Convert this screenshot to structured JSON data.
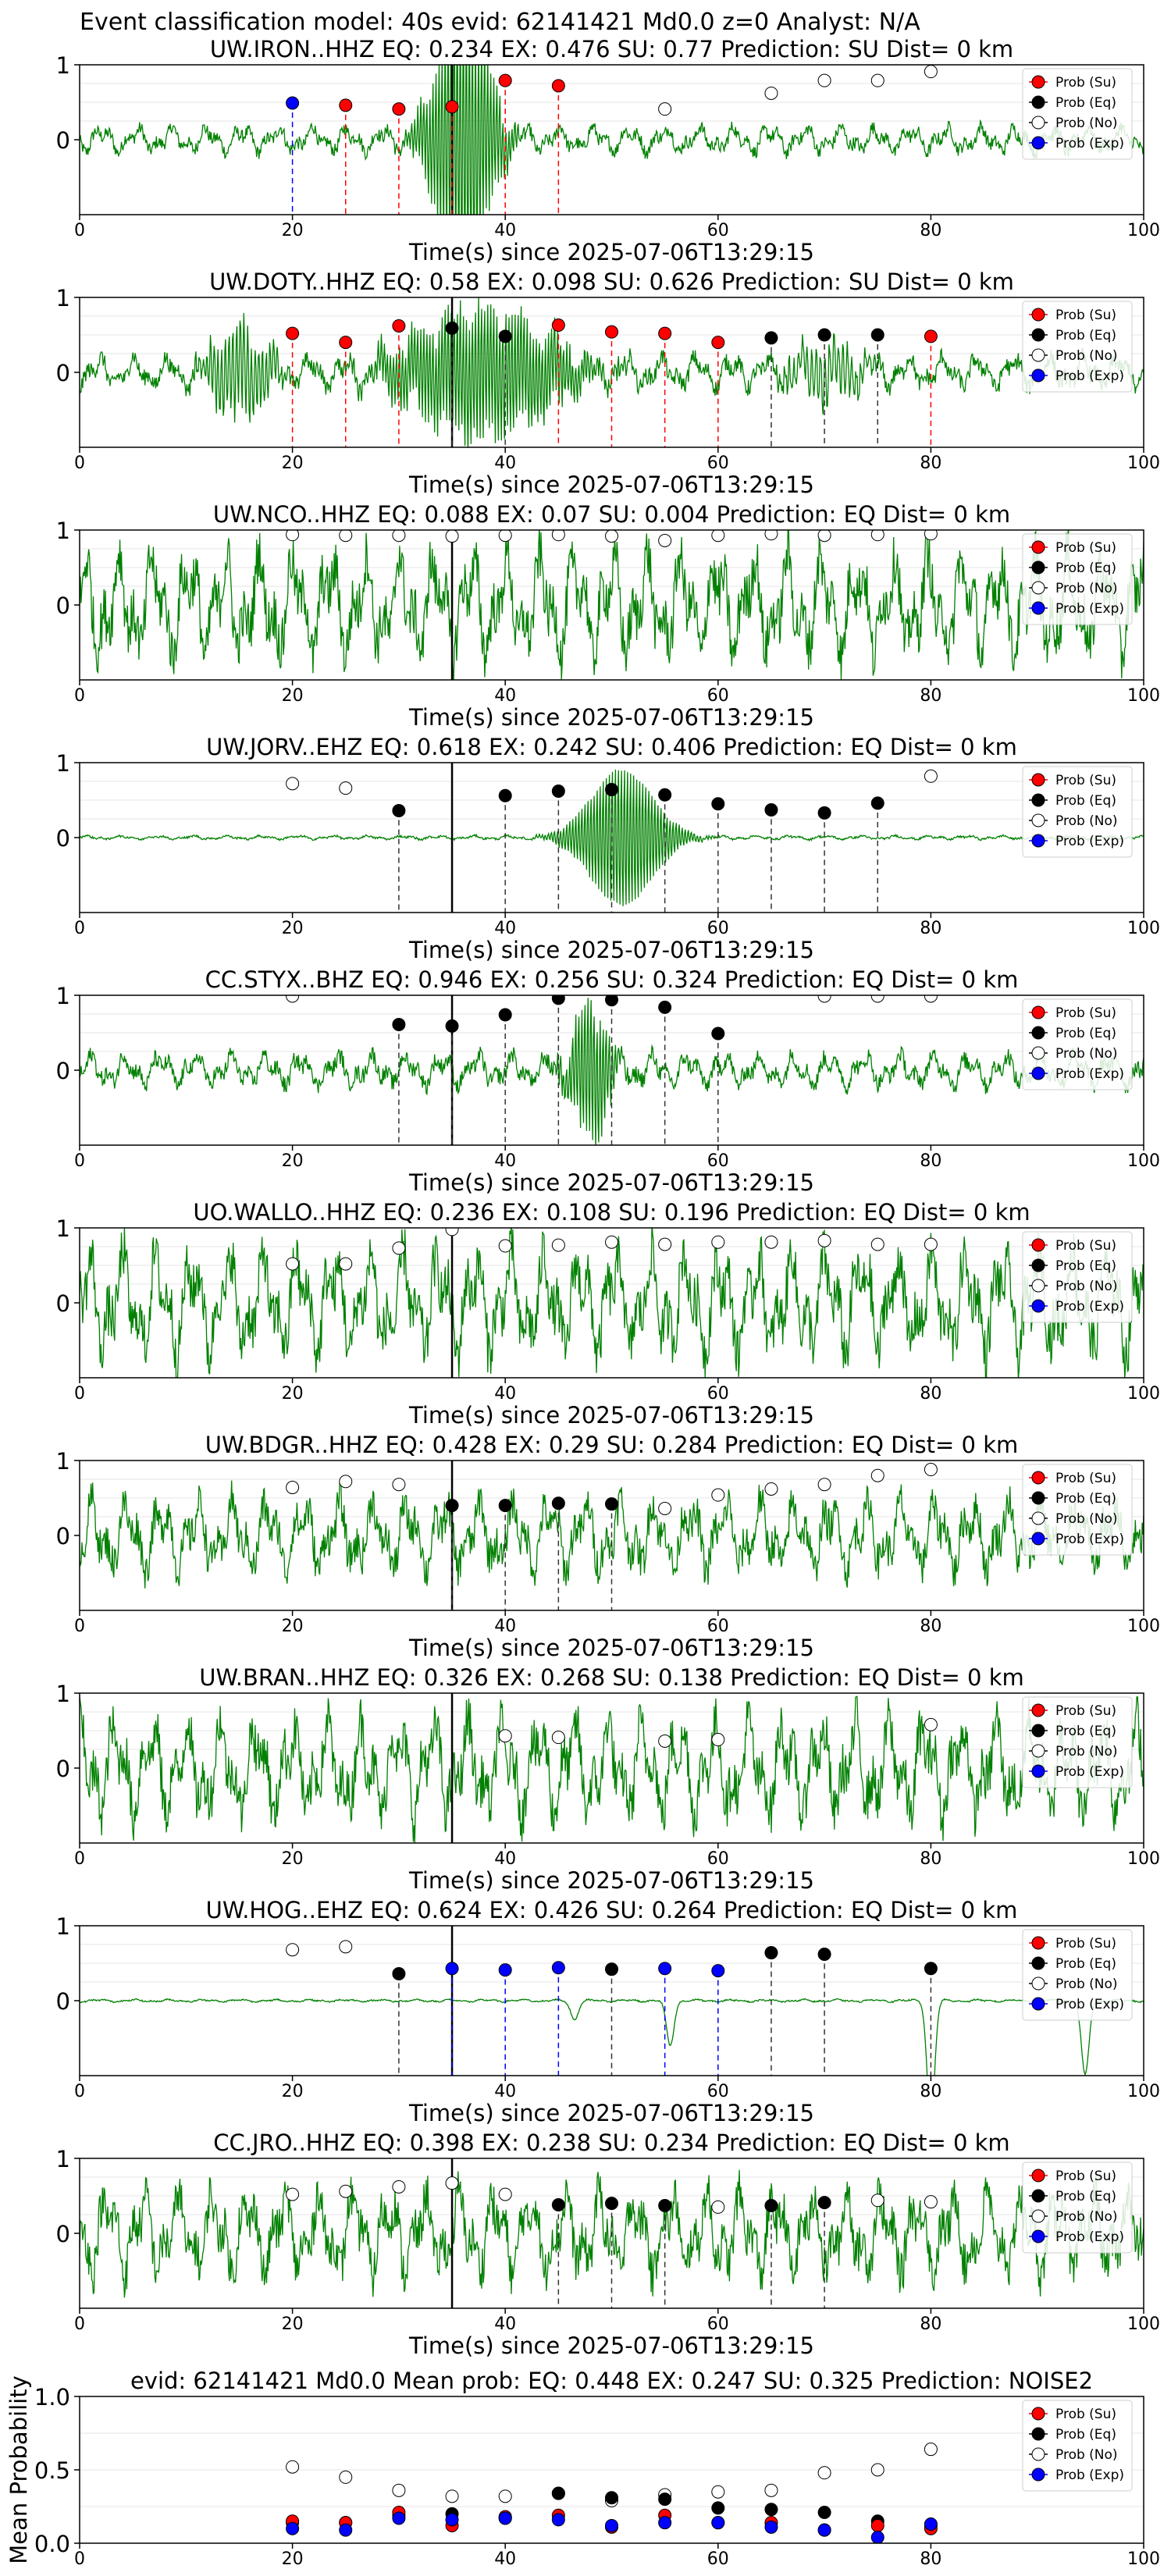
{
  "figure_title": "Event classification model: 40s evid: 62141421 Md0.0 z=0 Analyst: N/A",
  "colors": {
    "su": "#ff0000",
    "eq": "#000000",
    "no": "#ffffff",
    "exp": "#0000ff",
    "trace": "#008000",
    "pick_line": "#000000"
  },
  "legend": [
    "Prob (Su)",
    "Prob (Eq)",
    "Prob (No)",
    "Prob (Exp)"
  ],
  "chart_data": [
    {
      "type": "line",
      "title": "UW.IRON..HHZ   EQ: 0.234   EX: 0.476   SU: 0.77    Prediction: SU    Dist= 0 km",
      "xlabel": "Time(s) since 2025-07-06T13:29:15",
      "ylabel": "",
      "xlim": [
        0,
        100
      ],
      "ylim": [
        -1,
        1
      ],
      "x_ticks": [
        "0",
        "20",
        "40",
        "60",
        "80",
        "100"
      ],
      "y_ticks": [
        "1",
        "0"
      ],
      "pick_time": 35,
      "trace_style": "burst",
      "burst_center": 36,
      "burst_width": 3,
      "burst_amp": 2.0,
      "noise_amp": 0.2,
      "markers": [
        {
          "x": 20,
          "y": 0.49,
          "cls": "exp"
        },
        {
          "x": 25,
          "y": 0.46,
          "cls": "su"
        },
        {
          "x": 30,
          "y": 0.41,
          "cls": "su"
        },
        {
          "x": 35,
          "y": 0.44,
          "cls": "su"
        },
        {
          "x": 40,
          "y": 0.79,
          "cls": "su"
        },
        {
          "x": 45,
          "y": 0.72,
          "cls": "su"
        },
        {
          "x": 55,
          "y": 0.41,
          "cls": "no"
        },
        {
          "x": 65,
          "y": 0.62,
          "cls": "no"
        },
        {
          "x": 70,
          "y": 0.79,
          "cls": "no"
        },
        {
          "x": 75,
          "y": 0.79,
          "cls": "no"
        },
        {
          "x": 80,
          "y": 0.91,
          "cls": "no"
        }
      ]
    },
    {
      "type": "line",
      "title": "UW.DOTY..HHZ   EQ: 0.58   EX: 0.098   SU: 0.626    Prediction: SU    Dist= 0 km",
      "xlabel": "Time(s) since 2025-07-06T13:29:15",
      "ylabel": "",
      "xlim": [
        0,
        100
      ],
      "ylim": [
        -1,
        1
      ],
      "x_ticks": [
        "0",
        "20",
        "40",
        "60",
        "80",
        "100"
      ],
      "y_ticks": [
        "1",
        "0"
      ],
      "pick_time": 35,
      "trace_style": "multiburst",
      "burst_center": 38,
      "burst_width": 8,
      "burst_amp": 0.9,
      "noise_amp": 0.25,
      "markers": [
        {
          "x": 20,
          "y": 0.52,
          "cls": "su"
        },
        {
          "x": 25,
          "y": 0.4,
          "cls": "su"
        },
        {
          "x": 30,
          "y": 0.62,
          "cls": "su"
        },
        {
          "x": 35,
          "y": 0.59,
          "cls": "eq"
        },
        {
          "x": 40,
          "y": 0.48,
          "cls": "eq"
        },
        {
          "x": 45,
          "y": 0.63,
          "cls": "su"
        },
        {
          "x": 50,
          "y": 0.54,
          "cls": "su"
        },
        {
          "x": 55,
          "y": 0.52,
          "cls": "su"
        },
        {
          "x": 60,
          "y": 0.4,
          "cls": "su"
        },
        {
          "x": 65,
          "y": 0.46,
          "cls": "eq"
        },
        {
          "x": 70,
          "y": 0.5,
          "cls": "eq"
        },
        {
          "x": 75,
          "y": 0.5,
          "cls": "eq"
        },
        {
          "x": 80,
          "y": 0.48,
          "cls": "su"
        }
      ]
    },
    {
      "type": "line",
      "title": "UW.NCO..HHZ   EQ: 0.088   EX: 0.07   SU: 0.004    Prediction: EQ    Dist= 0 km",
      "xlabel": "Time(s) since 2025-07-06T13:29:15",
      "ylabel": "",
      "xlim": [
        0,
        100
      ],
      "ylim": [
        -1,
        1
      ],
      "x_ticks": [
        "0",
        "20",
        "40",
        "60",
        "80",
        "100"
      ],
      "y_ticks": [
        "1",
        "0"
      ],
      "pick_time": 35,
      "trace_style": "noise",
      "burst_center": 50,
      "burst_width": 1,
      "burst_amp": 0,
      "noise_amp": 0.8,
      "markers": [
        {
          "x": 20,
          "y": 0.94,
          "cls": "no"
        },
        {
          "x": 25,
          "y": 0.93,
          "cls": "no"
        },
        {
          "x": 30,
          "y": 0.93,
          "cls": "no"
        },
        {
          "x": 35,
          "y": 0.92,
          "cls": "no"
        },
        {
          "x": 40,
          "y": 0.93,
          "cls": "no"
        },
        {
          "x": 45,
          "y": 0.94,
          "cls": "no"
        },
        {
          "x": 50,
          "y": 0.92,
          "cls": "no"
        },
        {
          "x": 55,
          "y": 0.86,
          "cls": "no"
        },
        {
          "x": 60,
          "y": 0.93,
          "cls": "no"
        },
        {
          "x": 65,
          "y": 0.95,
          "cls": "no"
        },
        {
          "x": 70,
          "y": 0.93,
          "cls": "no"
        },
        {
          "x": 75,
          "y": 0.94,
          "cls": "no"
        },
        {
          "x": 80,
          "y": 0.95,
          "cls": "no"
        }
      ]
    },
    {
      "type": "line",
      "title": "UW.JORV..EHZ   EQ: 0.618   EX: 0.242   SU: 0.406    Prediction: EQ    Dist= 0 km",
      "xlabel": "Time(s) since 2025-07-06T13:29:15",
      "ylabel": "",
      "xlim": [
        0,
        100
      ],
      "ylim": [
        -1,
        1
      ],
      "x_ticks": [
        "0",
        "20",
        "40",
        "60",
        "80",
        "100"
      ],
      "y_ticks": [
        "1",
        "0"
      ],
      "pick_time": 35,
      "trace_style": "burst",
      "burst_center": 51,
      "burst_width": 4,
      "burst_amp": 1.0,
      "noise_amp": 0.03,
      "markers": [
        {
          "x": 20,
          "y": 0.72,
          "cls": "no"
        },
        {
          "x": 25,
          "y": 0.66,
          "cls": "no"
        },
        {
          "x": 30,
          "y": 0.36,
          "cls": "eq"
        },
        {
          "x": 40,
          "y": 0.56,
          "cls": "eq"
        },
        {
          "x": 45,
          "y": 0.62,
          "cls": "eq"
        },
        {
          "x": 50,
          "y": 0.64,
          "cls": "eq"
        },
        {
          "x": 55,
          "y": 0.57,
          "cls": "eq"
        },
        {
          "x": 60,
          "y": 0.45,
          "cls": "eq"
        },
        {
          "x": 65,
          "y": 0.37,
          "cls": "eq"
        },
        {
          "x": 70,
          "y": 0.33,
          "cls": "eq"
        },
        {
          "x": 75,
          "y": 0.46,
          "cls": "eq"
        },
        {
          "x": 80,
          "y": 0.82,
          "cls": "no"
        }
      ]
    },
    {
      "type": "line",
      "title": "CC.STYX..BHZ   EQ: 0.946   EX: 0.256   SU: 0.324    Prediction: EQ    Dist= 0 km",
      "xlabel": "Time(s) since 2025-07-06T13:29:15",
      "ylabel": "",
      "xlim": [
        0,
        100
      ],
      "ylim": [
        -1,
        1
      ],
      "x_ticks": [
        "0",
        "20",
        "40",
        "60",
        "80",
        "100"
      ],
      "y_ticks": [
        "1",
        "0"
      ],
      "pick_time": 35,
      "trace_style": "burst",
      "burst_center": 48,
      "burst_width": 2,
      "burst_amp": 1.0,
      "noise_amp": 0.25,
      "markers": [
        {
          "x": 20,
          "y": 0.99,
          "cls": "no"
        },
        {
          "x": 30,
          "y": 0.61,
          "cls": "eq"
        },
        {
          "x": 35,
          "y": 0.59,
          "cls": "eq"
        },
        {
          "x": 40,
          "y": 0.74,
          "cls": "eq"
        },
        {
          "x": 45,
          "y": 0.96,
          "cls": "eq"
        },
        {
          "x": 50,
          "y": 0.94,
          "cls": "eq"
        },
        {
          "x": 55,
          "y": 0.84,
          "cls": "eq"
        },
        {
          "x": 60,
          "y": 0.49,
          "cls": "eq"
        },
        {
          "x": 70,
          "y": 0.99,
          "cls": "no"
        },
        {
          "x": 75,
          "y": 0.99,
          "cls": "no"
        },
        {
          "x": 80,
          "y": 0.99,
          "cls": "no"
        }
      ]
    },
    {
      "type": "line",
      "title": "UO.WALLO..HHZ   EQ: 0.236   EX: 0.108   SU: 0.196    Prediction: EQ    Dist= 0 km",
      "xlabel": "Time(s) since 2025-07-06T13:29:15",
      "ylabel": "",
      "xlim": [
        0,
        100
      ],
      "ylim": [
        -1,
        1
      ],
      "x_ticks": [
        "0",
        "20",
        "40",
        "60",
        "80",
        "100"
      ],
      "y_ticks": [
        "1",
        "0"
      ],
      "pick_time": 35,
      "trace_style": "noise",
      "burst_center": 48,
      "burst_width": 1,
      "burst_amp": 0,
      "noise_amp": 0.8,
      "markers": [
        {
          "x": 20,
          "y": 0.52,
          "cls": "no"
        },
        {
          "x": 25,
          "y": 0.52,
          "cls": "no"
        },
        {
          "x": 30,
          "y": 0.73,
          "cls": "no"
        },
        {
          "x": 35,
          "y": 0.98,
          "cls": "no"
        },
        {
          "x": 40,
          "y": 0.76,
          "cls": "no"
        },
        {
          "x": 45,
          "y": 0.77,
          "cls": "no"
        },
        {
          "x": 50,
          "y": 0.81,
          "cls": "no"
        },
        {
          "x": 55,
          "y": 0.78,
          "cls": "no"
        },
        {
          "x": 60,
          "y": 0.81,
          "cls": "no"
        },
        {
          "x": 65,
          "y": 0.81,
          "cls": "no"
        },
        {
          "x": 70,
          "y": 0.83,
          "cls": "no"
        },
        {
          "x": 75,
          "y": 0.78,
          "cls": "no"
        },
        {
          "x": 80,
          "y": 0.78,
          "cls": "no"
        }
      ]
    },
    {
      "type": "line",
      "title": "UW.BDGR..HHZ   EQ: 0.428   EX: 0.29   SU: 0.284    Prediction: EQ    Dist= 0 km",
      "xlabel": "Time(s) since 2025-07-06T13:29:15",
      "ylabel": "",
      "xlim": [
        0,
        100
      ],
      "ylim": [
        -1,
        1
      ],
      "x_ticks": [
        "0",
        "20",
        "40",
        "60",
        "80",
        "100"
      ],
      "y_ticks": [
        "1",
        "0"
      ],
      "pick_time": 35,
      "trace_style": "noise",
      "burst_center": 40,
      "burst_width": 1,
      "burst_amp": 0,
      "noise_amp": 0.55,
      "markers": [
        {
          "x": 20,
          "y": 0.64,
          "cls": "no"
        },
        {
          "x": 25,
          "y": 0.72,
          "cls": "no"
        },
        {
          "x": 30,
          "y": 0.68,
          "cls": "no"
        },
        {
          "x": 35,
          "y": 0.4,
          "cls": "eq"
        },
        {
          "x": 40,
          "y": 0.4,
          "cls": "eq"
        },
        {
          "x": 45,
          "y": 0.43,
          "cls": "eq"
        },
        {
          "x": 50,
          "y": 0.42,
          "cls": "eq"
        },
        {
          "x": 55,
          "y": 0.36,
          "cls": "no"
        },
        {
          "x": 60,
          "y": 0.54,
          "cls": "no"
        },
        {
          "x": 65,
          "y": 0.62,
          "cls": "no"
        },
        {
          "x": 70,
          "y": 0.68,
          "cls": "no"
        },
        {
          "x": 75,
          "y": 0.8,
          "cls": "no"
        },
        {
          "x": 80,
          "y": 0.88,
          "cls": "no"
        }
      ]
    },
    {
      "type": "line",
      "title": "UW.BRAN..HHZ   EQ: 0.326   EX: 0.268   SU: 0.138    Prediction: EQ    Dist= 0 km",
      "xlabel": "Time(s) since 2025-07-06T13:29:15",
      "ylabel": "",
      "xlim": [
        0,
        100
      ],
      "ylim": [
        -1,
        1
      ],
      "x_ticks": [
        "0",
        "20",
        "40",
        "60",
        "80",
        "100"
      ],
      "y_ticks": [
        "1",
        "0"
      ],
      "pick_time": 35,
      "trace_style": "noise",
      "burst_center": 40,
      "burst_width": 1,
      "burst_amp": 0,
      "noise_amp": 0.75,
      "markers": [
        {
          "x": 40,
          "y": 0.43,
          "cls": "no"
        },
        {
          "x": 45,
          "y": 0.41,
          "cls": "no"
        },
        {
          "x": 55,
          "y": 0.36,
          "cls": "no"
        },
        {
          "x": 60,
          "y": 0.38,
          "cls": "no"
        },
        {
          "x": 80,
          "y": 0.58,
          "cls": "no"
        }
      ]
    },
    {
      "type": "line",
      "title": "UW.HOG..EHZ   EQ: 0.624   EX: 0.426   SU: 0.264    Prediction: EQ    Dist= 0 km",
      "xlabel": "Time(s) since 2025-07-06T13:29:15",
      "ylabel": "",
      "xlim": [
        0,
        100
      ],
      "ylim": [
        -1,
        1
      ],
      "x_ticks": [
        "0",
        "20",
        "40",
        "60",
        "80",
        "100"
      ],
      "y_ticks": [
        "1",
        "0"
      ],
      "pick_time": 35,
      "trace_style": "spikes",
      "burst_center": 80,
      "burst_width": 1,
      "burst_amp": 1.0,
      "noise_amp": 0.02,
      "markers": [
        {
          "x": 20,
          "y": 0.68,
          "cls": "no"
        },
        {
          "x": 25,
          "y": 0.72,
          "cls": "no"
        },
        {
          "x": 30,
          "y": 0.36,
          "cls": "eq"
        },
        {
          "x": 35,
          "y": 0.43,
          "cls": "exp"
        },
        {
          "x": 40,
          "y": 0.41,
          "cls": "exp"
        },
        {
          "x": 45,
          "y": 0.44,
          "cls": "exp"
        },
        {
          "x": 50,
          "y": 0.42,
          "cls": "eq"
        },
        {
          "x": 55,
          "y": 0.43,
          "cls": "exp"
        },
        {
          "x": 60,
          "y": 0.4,
          "cls": "exp"
        },
        {
          "x": 65,
          "y": 0.64,
          "cls": "eq"
        },
        {
          "x": 70,
          "y": 0.62,
          "cls": "eq"
        },
        {
          "x": 80,
          "y": 0.43,
          "cls": "eq"
        }
      ]
    },
    {
      "type": "line",
      "title": "CC.JRO..HHZ   EQ: 0.398   EX: 0.238   SU: 0.234    Prediction: EQ    Dist= 0 km",
      "xlabel": "Time(s) since 2025-07-06T13:29:15",
      "ylabel": "",
      "xlim": [
        0,
        100
      ],
      "ylim": [
        -1,
        1
      ],
      "x_ticks": [
        "0",
        "20",
        "40",
        "60",
        "80",
        "100"
      ],
      "y_ticks": [
        "1",
        "0"
      ],
      "pick_time": 35,
      "trace_style": "noise",
      "burst_center": 40,
      "burst_width": 1,
      "burst_amp": 0,
      "noise_amp": 0.65,
      "markers": [
        {
          "x": 20,
          "y": 0.52,
          "cls": "no"
        },
        {
          "x": 25,
          "y": 0.56,
          "cls": "no"
        },
        {
          "x": 30,
          "y": 0.62,
          "cls": "no"
        },
        {
          "x": 35,
          "y": 0.67,
          "cls": "no"
        },
        {
          "x": 40,
          "y": 0.52,
          "cls": "no"
        },
        {
          "x": 45,
          "y": 0.38,
          "cls": "eq"
        },
        {
          "x": 50,
          "y": 0.4,
          "cls": "eq"
        },
        {
          "x": 55,
          "y": 0.37,
          "cls": "eq"
        },
        {
          "x": 60,
          "y": 0.35,
          "cls": "no"
        },
        {
          "x": 65,
          "y": 0.37,
          "cls": "eq"
        },
        {
          "x": 70,
          "y": 0.41,
          "cls": "eq"
        },
        {
          "x": 75,
          "y": 0.44,
          "cls": "no"
        },
        {
          "x": 80,
          "y": 0.42,
          "cls": "no"
        }
      ]
    },
    {
      "type": "scatter",
      "title": "evid: 62141421  Md0.0   Mean prob:   EQ: 0.448   EX: 0.247   SU: 0.325   Prediction: NOISE2",
      "xlabel": "",
      "ylabel": "Mean Probability",
      "xlim": [
        0,
        100
      ],
      "ylim": [
        0,
        1
      ],
      "x_ticks": [
        "0",
        "20",
        "40",
        "60",
        "80",
        "100"
      ],
      "y_ticks": [
        "1.0",
        "0.5",
        "0.0"
      ],
      "series": [
        {
          "name": "Prob (No)",
          "cls": "no",
          "x": [
            20,
            25,
            30,
            35,
            40,
            45,
            50,
            55,
            60,
            65,
            70,
            75,
            80
          ],
          "values": [
            0.52,
            0.45,
            0.36,
            0.32,
            0.32,
            0.34,
            0.29,
            0.33,
            0.35,
            0.36,
            0.48,
            0.5,
            0.64
          ]
        },
        {
          "name": "Prob (Eq)",
          "cls": "eq",
          "x": [
            20,
            25,
            30,
            35,
            40,
            45,
            50,
            55,
            60,
            65,
            70,
            75,
            80
          ],
          "values": [
            0.14,
            0.14,
            0.19,
            0.2,
            0.17,
            0.34,
            0.31,
            0.3,
            0.24,
            0.23,
            0.21,
            0.15,
            0.12
          ]
        },
        {
          "name": "Prob (Su)",
          "cls": "su",
          "x": [
            20,
            25,
            30,
            35,
            40,
            45,
            50,
            55,
            60,
            65,
            70,
            75,
            80
          ],
          "values": [
            0.15,
            0.14,
            0.21,
            0.12,
            0.18,
            0.19,
            0.11,
            0.19,
            0.14,
            0.14,
            0.09,
            0.12,
            0.1
          ]
        },
        {
          "name": "Prob (Exp)",
          "cls": "exp",
          "x": [
            20,
            25,
            30,
            35,
            40,
            45,
            50,
            55,
            60,
            65,
            70,
            75,
            80
          ],
          "values": [
            0.1,
            0.09,
            0.17,
            0.16,
            0.17,
            0.16,
            0.12,
            0.14,
            0.14,
            0.11,
            0.09,
            0.04,
            0.13
          ]
        }
      ]
    }
  ]
}
